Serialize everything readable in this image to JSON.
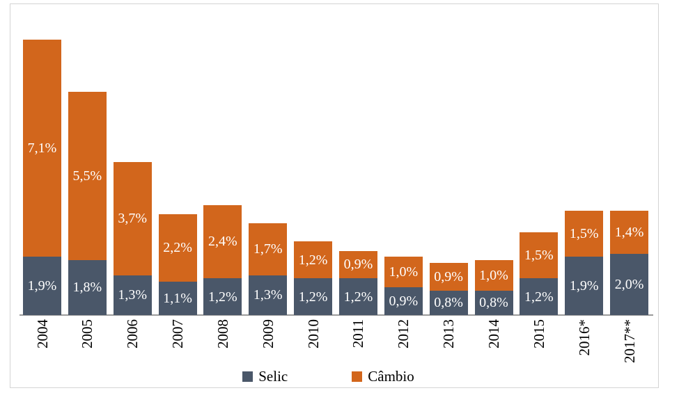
{
  "chart_data": {
    "type": "bar",
    "stacked": true,
    "title": "",
    "xlabel": "",
    "ylabel": "",
    "ylim": [
      0,
      9
    ],
    "grid": false,
    "legend_position": "bottom-center",
    "categories": [
      "2004",
      "2005",
      "2006",
      "2007",
      "2008",
      "2009",
      "2010",
      "2011",
      "2012",
      "2013",
      "2014",
      "2015",
      "2016*",
      "2017**"
    ],
    "series": [
      {
        "name": "Selic",
        "color": "#4A5769",
        "values": [
          1.9,
          1.8,
          1.3,
          1.1,
          1.2,
          1.3,
          1.2,
          1.2,
          0.9,
          0.8,
          0.8,
          1.2,
          1.9,
          2.0
        ],
        "labels": [
          "1,9%",
          "1,8%",
          "1,3%",
          "1,1%",
          "1,2%",
          "1,3%",
          "1,2%",
          "1,2%",
          "0,9%",
          "0,8%",
          "0,8%",
          "1,2%",
          "1,9%",
          "2,0%"
        ]
      },
      {
        "name": "Câmbio",
        "color": "#D2661C",
        "values": [
          7.1,
          5.5,
          3.7,
          2.2,
          2.4,
          1.7,
          1.2,
          0.9,
          1.0,
          0.9,
          1.0,
          1.5,
          1.5,
          1.4
        ],
        "labels": [
          "7,1%",
          "5,5%",
          "3,7%",
          "2,2%",
          "2,4%",
          "1,7%",
          "1,2%",
          "0,9%",
          "1,0%",
          "0,9%",
          "1,0%",
          "1,5%",
          "1,5%",
          "1,4%"
        ]
      }
    ],
    "value_label_color": "#FFFFFF",
    "axis_line_color": "#9B9B9B",
    "frame_border_color": "#D4D4D4"
  },
  "legend": {
    "selic_label": "Selic",
    "cambio_label": "Câmbio"
  }
}
